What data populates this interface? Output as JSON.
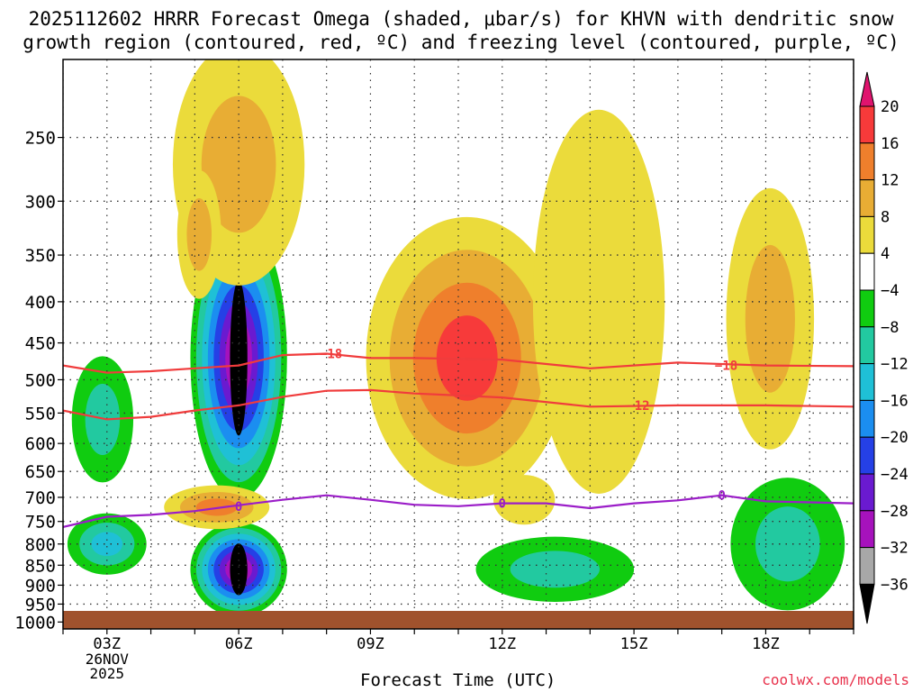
{
  "title_line1": "2025112602 HRRR Forecast Omega (shaded, μbar/s) for KHVN with dendritic snow",
  "title_line2": "growth region (contoured, red, ºC) and freezing level (contoured, purple, ºC)",
  "credit": "coolwx.com/models",
  "chart_data": {
    "type": "heatmap",
    "title": "2025112602 HRRR Forecast Omega (shaded, μbar/s) for KHVN with dendritic snow growth region (contoured, red, ºC) and freezing level (contoured, purple, ºC)",
    "xlabel": "Forecast Time (UTC)",
    "ylabel": "",
    "x_ticks": [
      {
        "hour": 3,
        "label": "03Z",
        "sub": [
          "26NOV",
          "2025"
        ]
      },
      {
        "hour": 6,
        "label": "06Z",
        "sub": []
      },
      {
        "hour": 9,
        "label": "09Z",
        "sub": []
      },
      {
        "hour": 12,
        "label": "12Z",
        "sub": []
      },
      {
        "hour": 15,
        "label": "15Z",
        "sub": []
      },
      {
        "hour": 18,
        "label": "18Z",
        "sub": []
      }
    ],
    "xlim": [
      2,
      20
    ],
    "y_ticks": [
      250,
      300,
      350,
      400,
      450,
      500,
      550,
      600,
      650,
      700,
      750,
      800,
      850,
      900,
      950,
      1000
    ],
    "ylim": [
      1020,
      200
    ],
    "colorbar": {
      "labels": [
        "20",
        "16",
        "12",
        "8",
        "4",
        "−4",
        "−8",
        "−12",
        "−16",
        "−20",
        "−24",
        "−28",
        "−32",
        "−36"
      ],
      "colors": [
        "#e0146e",
        "#f73a3a",
        "#ef7f2c",
        "#e8ad34",
        "#ebdb3b",
        "#ffffff",
        "#10cc10",
        "#22c9a0",
        "#1fc0d6",
        "#1b8ef0",
        "#2540e6",
        "#6a1ad0",
        "#a612bc",
        "#a8a8a8",
        "#000000"
      ]
    },
    "contours": [
      {
        "name": "dgz-minus18",
        "label": "−18",
        "color": "#f03c3c",
        "points": [
          [
            2,
            480
          ],
          [
            3,
            490
          ],
          [
            4,
            488
          ],
          [
            5,
            484
          ],
          [
            6,
            480
          ],
          [
            7,
            466
          ],
          [
            8,
            464
          ],
          [
            9,
            470
          ],
          [
            10,
            470
          ],
          [
            12,
            472
          ],
          [
            14,
            484
          ],
          [
            16,
            476
          ],
          [
            18,
            480
          ],
          [
            20,
            481
          ]
        ]
      },
      {
        "name": "dgz-minus12",
        "label": "−12",
        "color": "#f03c3c",
        "points": [
          [
            2,
            546
          ],
          [
            3,
            560
          ],
          [
            4,
            556
          ],
          [
            5,
            546
          ],
          [
            6,
            538
          ],
          [
            7,
            525
          ],
          [
            8,
            516
          ],
          [
            9,
            515
          ],
          [
            10,
            520
          ],
          [
            12,
            526
          ],
          [
            14,
            540
          ],
          [
            16,
            538
          ],
          [
            18,
            538
          ],
          [
            20,
            540
          ]
        ]
      },
      {
        "name": "freezing-level",
        "label": "0",
        "color": "#9b1dc8",
        "points": [
          [
            2,
            762
          ],
          [
            3,
            740
          ],
          [
            4,
            736
          ],
          [
            5,
            728
          ],
          [
            6,
            716
          ],
          [
            7,
            705
          ],
          [
            8,
            696
          ],
          [
            9,
            705
          ],
          [
            10,
            715
          ],
          [
            11,
            718
          ],
          [
            12,
            712
          ],
          [
            13,
            712
          ],
          [
            14,
            722
          ],
          [
            15,
            712
          ],
          [
            16,
            706
          ],
          [
            17,
            696
          ],
          [
            18,
            708
          ],
          [
            20,
            712
          ]
        ]
      }
    ],
    "contour_labels": [
      {
        "text": "−18",
        "hour": 8.1,
        "p": 464
      },
      {
        "text": "−18",
        "hour": 17.1,
        "p": 480
      },
      {
        "text": "−12",
        "hour": 15.1,
        "p": 538
      },
      {
        "text": "0",
        "hour": 12.0,
        "p": 712
      },
      {
        "text": "0",
        "hour": 17.0,
        "p": 696
      },
      {
        "text": "0",
        "hour": 6.0,
        "p": 718
      }
    ],
    "regions": [
      {
        "hour": 6,
        "p": 470,
        "dh": 1.1,
        "dp": 180,
        "levels": [
          -8,
          -12,
          -16,
          -20,
          -24,
          -28,
          -32,
          -36
        ]
      },
      {
        "hour": 6,
        "p": 860,
        "dh": 1.1,
        "dp": 115,
        "levels": [
          -8,
          -12,
          -16,
          -20,
          -24,
          -28,
          -32,
          -36
        ]
      },
      {
        "hour": 3,
        "p": 800,
        "dh": 0.9,
        "dp": 70,
        "levels": [
          -8,
          -12,
          -16
        ]
      },
      {
        "hour": 2.9,
        "p": 560,
        "dh": 0.7,
        "dp": 100,
        "levels": [
          -8,
          -12
        ]
      },
      {
        "hour": 11.2,
        "p": 470,
        "dh": 2.3,
        "dp": 180,
        "levels": [
          4,
          8,
          12,
          16
        ]
      },
      {
        "hour": 6.0,
        "p": 270,
        "dh": 1.5,
        "dp": 90,
        "levels": [
          4,
          8
        ]
      },
      {
        "hour": 5.5,
        "p": 720,
        "dh": 1.2,
        "dp": 45,
        "levels": [
          4,
          8,
          12
        ]
      },
      {
        "hour": 13.2,
        "p": 860,
        "dh": 1.8,
        "dp": 80,
        "levels": [
          -8,
          -12
        ]
      },
      {
        "hour": 18.5,
        "p": 800,
        "dh": 1.3,
        "dp": 150,
        "levels": [
          -8,
          -12
        ]
      },
      {
        "hour": 18.1,
        "p": 420,
        "dh": 1.0,
        "dp": 150,
        "levels": [
          4,
          8
        ]
      },
      {
        "hour": 14.2,
        "p": 400,
        "dh": 1.5,
        "dp": 200,
        "levels": [
          4
        ]
      },
      {
        "hour": 5.1,
        "p": 330,
        "dh": 0.5,
        "dp": 60,
        "levels": [
          4,
          8
        ]
      },
      {
        "hour": 12.5,
        "p": 705,
        "dh": 0.7,
        "dp": 50,
        "levels": [
          4
        ]
      }
    ]
  }
}
